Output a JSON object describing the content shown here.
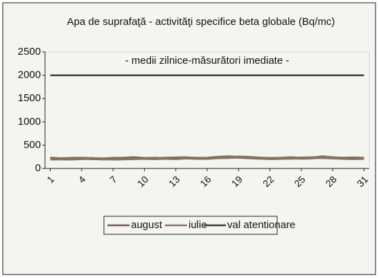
{
  "chart_data": {
    "type": "line",
    "title": "Apa de suprafaţă - activităţi specifice beta globale (Bq/mc)",
    "subtitle": "- medii zilnice-măsurători imediate -",
    "categories": [
      1,
      null,
      null,
      4,
      null,
      null,
      7,
      null,
      null,
      10,
      null,
      null,
      13,
      null,
      null,
      16,
      null,
      null,
      19,
      null,
      null,
      22,
      null,
      null,
      25,
      null,
      null,
      28,
      null,
      null,
      31
    ],
    "series": [
      {
        "name": "august",
        "color": "#6e5c52",
        "values": [
          220,
          210,
          215,
          220,
          210,
          205,
          215,
          220,
          230,
          215,
          210,
          220,
          225,
          230,
          215,
          220,
          240,
          250,
          240,
          230,
          220,
          215,
          220,
          230,
          220,
          225,
          250,
          230,
          220,
          225,
          220
        ]
      },
      {
        "name": "iulie",
        "color": "#8a7262",
        "values": [
          200,
          205,
          200,
          210,
          215,
          205,
          200,
          205,
          210,
          215,
          220,
          215,
          210,
          225,
          220,
          215,
          230,
          235,
          245,
          240,
          225,
          210,
          215,
          220,
          225,
          230,
          235,
          225,
          215,
          210,
          215
        ]
      },
      {
        "name": "val atentionare",
        "color": "#3c3c3c",
        "values": [
          2000,
          2000,
          2000,
          2000,
          2000,
          2000,
          2000,
          2000,
          2000,
          2000,
          2000,
          2000,
          2000,
          2000,
          2000,
          2000,
          2000,
          2000,
          2000,
          2000,
          2000,
          2000,
          2000,
          2000,
          2000,
          2000,
          2000,
          2000,
          2000,
          2000,
          2000
        ]
      }
    ],
    "ylim": [
      0,
      2500
    ],
    "yticks": [
      0,
      500,
      1000,
      1500,
      2000,
      2500
    ],
    "grid": false,
    "legend": "bottom"
  }
}
